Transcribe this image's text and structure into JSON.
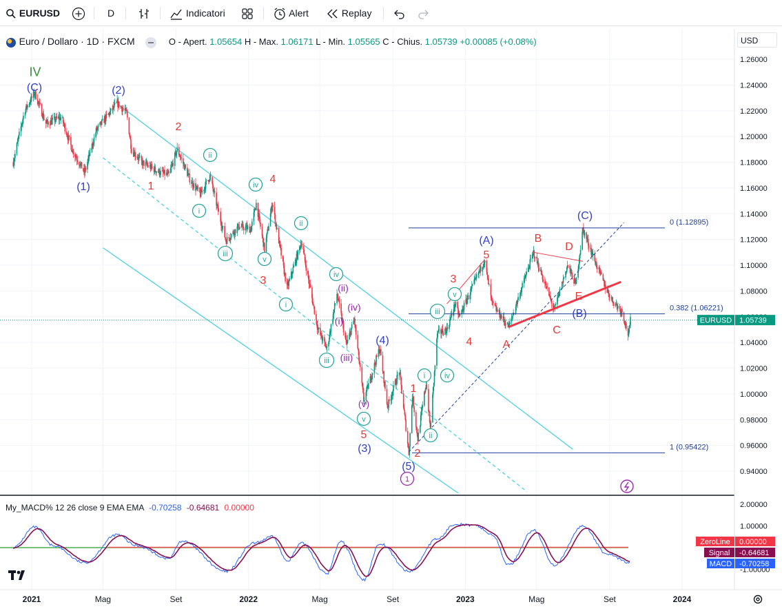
{
  "toolbar": {
    "symbol": "EURUSD",
    "interval": "D",
    "indicators_label": "Indicatori",
    "alert_label": "Alert",
    "replay_label": "Replay"
  },
  "legend": {
    "title": "Euro / Dollaro · 1D · FXCM",
    "open_label": "O - Apert.",
    "open": "1.05654",
    "high_label": "H - Max.",
    "high": "1.06171",
    "low_label": "L - Min.",
    "low": "1.05565",
    "close_label": "C - Chius.",
    "close": "1.05739",
    "change": "+0.00085 (+0.08%)"
  },
  "currency_button": "USD",
  "price_axis": {
    "ticks": [
      "1.26000",
      "1.24000",
      "1.22000",
      "1.20000",
      "1.18000",
      "1.16000",
      "1.14000",
      "1.12000",
      "1.10000",
      "1.08000",
      "1.06000",
      "1.04000",
      "1.02000",
      "1.00000",
      "0.98000",
      "0.96000",
      "0.94000"
    ],
    "last_label_symbol": "EURUSD",
    "last_label_value": "1.05739"
  },
  "time_axis": {
    "ticks": [
      "2021",
      "Mag",
      "Set",
      "2022",
      "Mag",
      "Set",
      "2023",
      "Mag",
      "Set",
      "2024"
    ]
  },
  "macd": {
    "label": "My_MACD% 12 26 close 9 EMA EMA",
    "macd_value": "-0.70258",
    "signal_value": "-0.64681",
    "zero_value": "0.00000",
    "ticks": [
      "2.00000",
      "1.00000",
      "-1.00000"
    ],
    "zeroline_label": "ZeroLine",
    "signal_label": "Signal",
    "macd_label": "MACD",
    "colors": {
      "macd": "#2962ff",
      "signal": "#880e4f",
      "zero": "#ff5252",
      "green": "#4caf50"
    }
  },
  "fib": {
    "level0": "0 (1.12895)",
    "level382": "0.382 (1.06221)",
    "level1": "1 (0.95422)"
  },
  "wave_labels": {
    "green_IV": "IV",
    "blue_C_top": "(C)",
    "blue_2": "(2)",
    "blue_1": "(1)",
    "blue_3": "(3)",
    "blue_4": "(4)",
    "blue_5": "(5)",
    "purple_1": "1",
    "red_2a": "2",
    "red_1a": "1",
    "red_3a": "3",
    "red_4a": "4",
    "red_5a": "5",
    "teal_ii_a": "ii",
    "teal_iv_a": "iv",
    "teal_i_a": "i",
    "teal_ii_b": "ii",
    "teal_iii_a": "iii",
    "teal_v_a": "v",
    "teal_i_b": "i",
    "teal_iv_b": "iv",
    "teal_iii_b": "iii",
    "teal_v_b": "v",
    "purple_ii": "(ii)",
    "purple_i": "(i)",
    "purple_iv": "(iv)",
    "purple_iii": "(iii)",
    "purple_v": "(v)",
    "red_1b": "1",
    "red_2b": "2",
    "teal_i_c": "i",
    "teal_ii_c": "ii",
    "teal_iii_c": "iii",
    "teal_iv_c": "iv",
    "teal_v_c": "v",
    "red_3b": "3",
    "red_4b": "4",
    "red_5b": "5",
    "blue_A": "(A)",
    "red_A": "A",
    "red_B": "B",
    "red_C": "C",
    "red_D": "D",
    "red_E": "E",
    "blue_B": "(B)",
    "blue_C_right": "(C)"
  },
  "chart_data": {
    "type": "candlestick",
    "symbol": "EURUSD",
    "interval": "1D",
    "ylim": [
      0.93,
      1.27
    ],
    "x_range": [
      "2020-12-01",
      "2024-02-20"
    ],
    "grid": true,
    "price_path": [
      [
        "2020-12-01",
        1.18
      ],
      [
        "2020-12-20",
        1.22
      ],
      [
        "2021-01-06",
        1.234
      ],
      [
        "2021-01-25",
        1.21
      ],
      [
        "2021-02-20",
        1.215
      ],
      [
        "2021-03-10",
        1.19
      ],
      [
        "2021-03-31",
        1.172
      ],
      [
        "2021-04-20",
        1.205
      ],
      [
        "2021-05-25",
        1.226
      ],
      [
        "2021-06-10",
        1.218
      ],
      [
        "2021-06-18",
        1.19
      ],
      [
        "2021-07-05",
        1.18
      ],
      [
        "2021-08-05",
        1.172
      ],
      [
        "2021-08-20",
        1.17
      ],
      [
        "2021-09-03",
        1.19
      ],
      [
        "2021-09-25",
        1.166
      ],
      [
        "2021-10-12",
        1.155
      ],
      [
        "2021-10-28",
        1.169
      ],
      [
        "2021-11-10",
        1.144
      ],
      [
        "2021-11-24",
        1.119
      ],
      [
        "2021-12-15",
        1.13
      ],
      [
        "2022-01-05",
        1.128
      ],
      [
        "2022-01-14",
        1.148
      ],
      [
        "2022-01-28",
        1.112
      ],
      [
        "2022-02-10",
        1.148
      ],
      [
        "2022-03-07",
        1.082
      ],
      [
        "2022-03-31",
        1.118
      ],
      [
        "2022-04-28",
        1.05
      ],
      [
        "2022-05-13",
        1.035
      ],
      [
        "2022-05-30",
        1.078
      ],
      [
        "2022-06-15",
        1.038
      ],
      [
        "2022-06-28",
        1.058
      ],
      [
        "2022-07-14",
        0.995
      ],
      [
        "2022-08-10",
        1.036
      ],
      [
        "2022-08-23",
        0.99
      ],
      [
        "2022-09-12",
        1.018
      ],
      [
        "2022-09-28",
        0.954
      ],
      [
        "2022-10-04",
        0.999
      ],
      [
        "2022-10-13",
        0.965
      ],
      [
        "2022-10-27",
        1.009
      ],
      [
        "2022-11-03",
        0.973
      ],
      [
        "2022-11-15",
        1.047
      ],
      [
        "2022-12-01",
        1.05
      ],
      [
        "2022-12-15",
        1.07
      ],
      [
        "2022-12-22",
        1.06
      ],
      [
        "2023-01-15",
        1.085
      ],
      [
        "2023-02-02",
        1.104
      ],
      [
        "2023-02-15",
        1.07
      ],
      [
        "2023-03-15",
        1.052
      ],
      [
        "2023-04-26",
        1.11
      ],
      [
        "2023-05-31",
        1.065
      ],
      [
        "2023-06-22",
        1.1
      ],
      [
        "2023-07-06",
        1.085
      ],
      [
        "2023-07-18",
        1.128
      ],
      [
        "2023-08-10",
        1.1
      ],
      [
        "2023-08-28",
        1.08
      ],
      [
        "2023-09-05",
        1.073
      ],
      [
        "2023-09-22",
        1.064
      ],
      [
        "2023-10-03",
        1.045
      ],
      [
        "2023-10-06",
        1.057
      ]
    ],
    "annotations": [
      {
        "text": "0 (1.12895)",
        "price": 1.12895
      },
      {
        "text": "0.382 (1.06221)",
        "price": 1.06221
      },
      {
        "text": "1 (0.95422)",
        "price": 0.95422
      }
    ],
    "macd_path": [
      [
        "2020-12-01",
        0.0
      ],
      [
        "2021-01-06",
        0.95
      ],
      [
        "2021-02-05",
        0.1
      ],
      [
        "2021-03-31",
        -0.7
      ],
      [
        "2021-05-25",
        0.6
      ],
      [
        "2021-06-25",
        0.1
      ],
      [
        "2021-08-20",
        -0.5
      ],
      [
        "2021-09-10",
        0.3
      ],
      [
        "2021-11-24",
        -1.1
      ],
      [
        "2022-01-10",
        0.2
      ],
      [
        "2022-02-10",
        0.5
      ],
      [
        "2022-03-07",
        -0.6
      ],
      [
        "2022-04-01",
        0.2
      ],
      [
        "2022-05-13",
        -1.2
      ],
      [
        "2022-06-05",
        0.3
      ],
      [
        "2022-07-14",
        -1.5
      ],
      [
        "2022-08-10",
        0.2
      ],
      [
        "2022-09-28",
        -1.1
      ],
      [
        "2022-11-15",
        0.4
      ],
      [
        "2022-12-15",
        1.1
      ],
      [
        "2023-01-20",
        1.0
      ],
      [
        "2023-02-15",
        0.6
      ],
      [
        "2023-03-15",
        -0.8
      ],
      [
        "2023-04-26",
        0.8
      ],
      [
        "2023-05-31",
        -0.8
      ],
      [
        "2023-07-18",
        1.0
      ],
      [
        "2023-08-28",
        -0.3
      ],
      [
        "2023-10-06",
        -0.70258
      ]
    ]
  }
}
